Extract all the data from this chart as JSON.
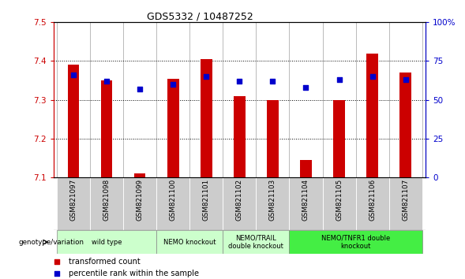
{
  "title": "GDS5332 / 10487252",
  "samples": [
    "GSM821097",
    "GSM821098",
    "GSM821099",
    "GSM821100",
    "GSM821101",
    "GSM821102",
    "GSM821103",
    "GSM821104",
    "GSM821105",
    "GSM821106",
    "GSM821107"
  ],
  "bar_values": [
    7.39,
    7.35,
    7.11,
    7.355,
    7.405,
    7.31,
    7.3,
    7.145,
    7.3,
    7.42,
    7.37
  ],
  "percentile_values": [
    66,
    62,
    57,
    60,
    65,
    62,
    62,
    58,
    63,
    65,
    63
  ],
  "ylim_left": [
    7.1,
    7.5
  ],
  "ylim_right": [
    0,
    100
  ],
  "yticks_left": [
    7.1,
    7.2,
    7.3,
    7.4,
    7.5
  ],
  "yticks_right": [
    0,
    25,
    50,
    75,
    100
  ],
  "bar_color": "#cc0000",
  "percentile_color": "#0000cc",
  "xlabel_left_color": "#cc0000",
  "xlabel_right_color": "#0000cc",
  "background_color": "#ffffff",
  "plot_bg": "#ffffff",
  "sample_bg": "#cccccc",
  "groups": [
    {
      "label": "wild type",
      "start": 0,
      "end": 2,
      "color": "#ccffcc"
    },
    {
      "label": "NEMO knockout",
      "start": 3,
      "end": 4,
      "color": "#ccffcc"
    },
    {
      "label": "NEMO/TRAIL\ndouble knockout",
      "start": 5,
      "end": 6,
      "color": "#ccffcc"
    },
    {
      "label": "NEMO/TNFR1 double\nknockout",
      "start": 7,
      "end": 10,
      "color": "#44ee44"
    }
  ]
}
